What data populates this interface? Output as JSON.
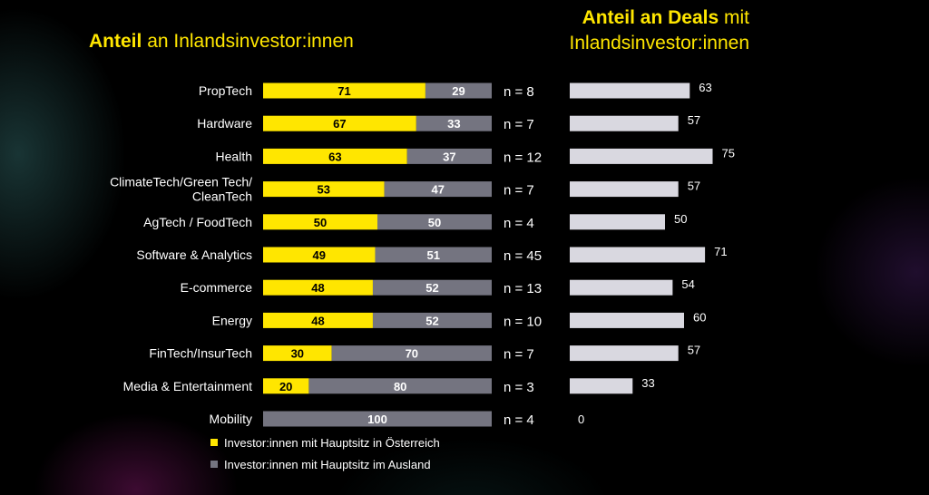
{
  "titles": {
    "left_bold": "Anteil",
    "left_rest": "an Inlandsinvestor:innen",
    "right_bold": "Anteil an Deals",
    "right_rest_1": "mit",
    "right_rest_2": "Inlandsinvestor:innen"
  },
  "colors": {
    "domestic": "#ffe600",
    "foreign": "#747480",
    "deals": "#d9d8e0",
    "background": "#000000"
  },
  "chart_data": [
    {
      "type": "bar",
      "orientation": "horizontal",
      "stacked": true,
      "categories": [
        "PropTech",
        "Hardware",
        "Health",
        "ClimateTech/Green Tech/ CleanTech",
        "AgTech / FoodTech",
        "Software & Analytics",
        "E-commerce",
        "Energy",
        "FinTech/InsurTech",
        "Media & Entertainment",
        "Mobility"
      ],
      "series": [
        {
          "name": "Investor:innen mit Hauptsitz in Österreich",
          "values": [
            71,
            67,
            63,
            53,
            50,
            49,
            48,
            48,
            30,
            20,
            0
          ]
        },
        {
          "name": "Investor:innen mit Hauptsitz im Ausland",
          "values": [
            29,
            33,
            37,
            47,
            50,
            51,
            52,
            52,
            70,
            80,
            100
          ]
        }
      ],
      "n_labels": [
        "n = 8",
        "n = 7",
        "n = 12",
        "n = 7",
        "n = 4",
        "n = 45",
        "n = 13",
        "n = 10",
        "n = 7",
        "n = 3",
        "n = 4"
      ],
      "xlim": [
        0,
        100
      ],
      "legend_position": "bottom"
    },
    {
      "type": "bar",
      "orientation": "horizontal",
      "categories": [
        "PropTech",
        "Hardware",
        "Health",
        "ClimateTech/Green Tech/ CleanTech",
        "AgTech / FoodTech",
        "Software & Analytics",
        "E-commerce",
        "Energy",
        "FinTech/InsurTech",
        "Media & Entertainment",
        "Mobility"
      ],
      "values": [
        63,
        57,
        75,
        57,
        50,
        71,
        54,
        60,
        57,
        33,
        0
      ],
      "xlim": [
        0,
        100
      ]
    }
  ]
}
